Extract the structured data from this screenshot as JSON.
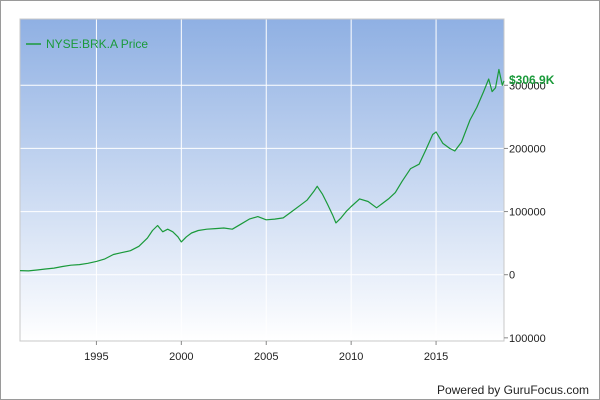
{
  "chart_data": {
    "type": "line",
    "title": "",
    "xlabel": "",
    "ylabel": "",
    "legend_position": "top-left",
    "grid": true,
    "x_ticks": [
      1995,
      2000,
      2005,
      2010,
      2015
    ],
    "xlim": [
      1990.5,
      2019.0
    ],
    "y_ticks": [
      {
        "value": 300000,
        "label": "300000"
      },
      {
        "value": 200000,
        "label": "200000"
      },
      {
        "value": 100000,
        "label": "100000"
      },
      {
        "value": 0,
        "label": "0"
      },
      {
        "value": -100000,
        "label": "100000"
      }
    ],
    "ylim": [
      -105000,
      405000
    ],
    "series": [
      {
        "name": "NYSE:BRK.A Price",
        "color": "#1a9a3a",
        "x": [
          1990.5,
          1991.0,
          1991.5,
          1992.0,
          1992.5,
          1993.0,
          1993.5,
          1994.0,
          1994.5,
          1995.0,
          1995.5,
          1996.0,
          1996.5,
          1997.0,
          1997.5,
          1998.0,
          1998.3,
          1998.6,
          1998.9,
          1999.2,
          1999.5,
          1999.8,
          2000.0,
          2000.3,
          2000.6,
          2001.0,
          2001.5,
          2002.0,
          2002.5,
          2003.0,
          2003.5,
          2004.0,
          2004.5,
          2005.0,
          2005.5,
          2006.0,
          2006.5,
          2007.0,
          2007.4,
          2007.8,
          2008.0,
          2008.3,
          2008.6,
          2008.9,
          2009.1,
          2009.4,
          2009.7,
          2010.0,
          2010.5,
          2011.0,
          2011.5,
          2011.8,
          2012.2,
          2012.6,
          2013.0,
          2013.5,
          2014.0,
          2014.4,
          2014.8,
          2015.0,
          2015.4,
          2015.8,
          2016.1,
          2016.5,
          2017.0,
          2017.4,
          2017.8,
          2018.1,
          2018.3,
          2018.5,
          2018.7,
          2018.9,
          2019.0
        ],
        "values": [
          6500,
          6000,
          7500,
          9000,
          10500,
          13000,
          15000,
          16000,
          18000,
          21000,
          25000,
          32000,
          35000,
          38000,
          45000,
          58000,
          70000,
          78000,
          68000,
          72000,
          68000,
          60000,
          52000,
          60000,
          66000,
          70000,
          72000,
          73000,
          74000,
          72000,
          80000,
          88000,
          92000,
          87000,
          88000,
          90000,
          100000,
          110000,
          118000,
          132000,
          140000,
          128000,
          112000,
          95000,
          82000,
          90000,
          100000,
          108000,
          120000,
          116000,
          106000,
          112000,
          120000,
          130000,
          148000,
          168000,
          175000,
          198000,
          222000,
          226000,
          208000,
          200000,
          196000,
          210000,
          245000,
          265000,
          290000,
          310000,
          290000,
          296000,
          325000,
          300000,
          306900
        ]
      }
    ],
    "last_value_label": "$306.9K"
  },
  "credit": "Powered by GuruFocus.com",
  "colors": {
    "plot_top": "#8fb0e3",
    "plot_bottom": "#ffffff",
    "line": "#1a9a3a",
    "grid": "#ffffff"
  }
}
